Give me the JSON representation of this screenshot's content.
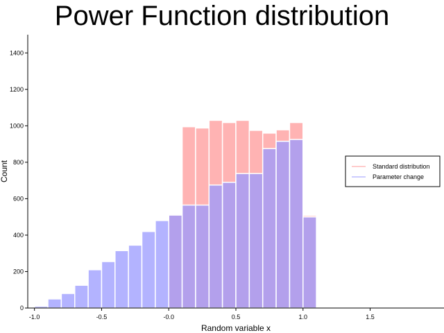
{
  "chart_data": {
    "type": "bar",
    "title": "Power Function distribution",
    "xlabel": "Random variable x",
    "ylabel": "Count",
    "xlim": [
      -1.05,
      2.05
    ],
    "ylim": [
      0,
      1500
    ],
    "xticks": [
      -1.0,
      -0.5,
      0.0,
      0.5,
      1.0,
      1.5
    ],
    "xtick_labels": [
      "-1.0",
      "-0.5",
      "-0.0",
      "0.5",
      "1.0",
      "1.5"
    ],
    "yticks": [
      0,
      200,
      400,
      600,
      800,
      1000,
      1200,
      1400
    ],
    "ytick_labels": [
      "0",
      "200",
      "400",
      "600",
      "800",
      "1000",
      "1200",
      "1400"
    ],
    "bin_width": 0.1,
    "legend_position": "right",
    "series": [
      {
        "name": "Standard distribution",
        "color": "#ff9999",
        "bin_starts": [
          0.0,
          0.1,
          0.2,
          0.3,
          0.4,
          0.5,
          0.6,
          0.7,
          0.8,
          0.9,
          1.0
        ],
        "values": [
          515,
          995,
          988,
          1030,
          1018,
          1030,
          975,
          960,
          978,
          1018,
          508
        ]
      },
      {
        "name": "Parameter change",
        "color": "#9999ff",
        "bin_starts": [
          -1.0,
          -0.9,
          -0.8,
          -0.7,
          -0.6,
          -0.5,
          -0.4,
          -0.3,
          -0.2,
          -0.1,
          0.0,
          0.1,
          0.2,
          0.3,
          0.4,
          0.5,
          0.6,
          0.7,
          0.8,
          0.9,
          1.0
        ],
        "values": [
          10,
          50,
          80,
          125,
          210,
          255,
          315,
          345,
          420,
          480,
          510,
          565,
          565,
          675,
          690,
          738,
          738,
          875,
          915,
          925,
          500
        ]
      }
    ]
  }
}
